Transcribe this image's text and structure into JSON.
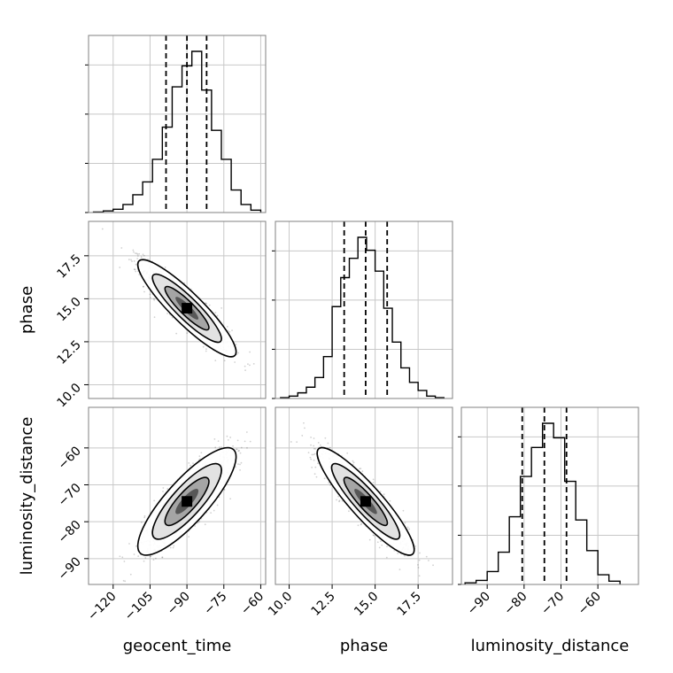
{
  "chart_data": {
    "type": "corner",
    "parameters": [
      "geocent_time",
      "phase",
      "luminosity_distance"
    ],
    "grid": true,
    "ranges": {
      "geocent_time": [
        -130,
        -58
      ],
      "phase": [
        9.2,
        19.5
      ],
      "luminosity_distance": [
        -97,
        -49
      ]
    },
    "ticks": {
      "geocent_time": {
        "values": [
          -120,
          -105,
          -90,
          -75,
          -60
        ],
        "labels": [
          "−120",
          "−105",
          "−90",
          "−75",
          "−60"
        ]
      },
      "phase": {
        "values": [
          10.0,
          12.5,
          15.0,
          17.5
        ],
        "labels": [
          "10.0",
          "12.5",
          "15.0",
          "17.5"
        ]
      },
      "luminosity_distance": {
        "values": [
          -90,
          -80,
          -70,
          -60
        ],
        "labels": [
          "−90",
          "−80",
          "−70",
          "−60"
        ]
      }
    },
    "quantiles": {
      "geocent_time": [
        -98.5,
        -90.0,
        -82.0
      ],
      "phase": [
        13.2,
        14.45,
        15.7
      ],
      "luminosity_distance": [
        -80.5,
        -74.5,
        -68.5
      ]
    },
    "marginals": [
      {
        "parameter": "geocent_time",
        "bin_edges": [
          -128,
          -124,
          -120,
          -116,
          -112,
          -108,
          -104,
          -100,
          -96,
          -92,
          -88,
          -84,
          -80,
          -76,
          -72,
          -68,
          -64,
          -60
        ],
        "counts": [
          0.3,
          1.0,
          2.0,
          5.0,
          11.0,
          19.0,
          33.0,
          53.0,
          78.0,
          91.0,
          100.0,
          76.0,
          51.0,
          33.0,
          14.0,
          5.0,
          1.5
        ]
      },
      {
        "parameter": "phase",
        "bin_edges": [
          9.5,
          10.0,
          10.5,
          11.0,
          11.5,
          12.0,
          12.5,
          13.0,
          13.5,
          14.0,
          14.5,
          15.0,
          15.5,
          16.0,
          16.5,
          17.0,
          17.5,
          18.0,
          18.5,
          19.0
        ],
        "counts": [
          0.5,
          1.5,
          3.5,
          7.0,
          13.0,
          26.0,
          57.0,
          75.0,
          87.0,
          100.0,
          92.0,
          79.0,
          56.0,
          35.0,
          19.0,
          10.0,
          5.0,
          1.5,
          0.5
        ]
      },
      {
        "parameter": "luminosity_distance",
        "bin_edges": [
          -96,
          -93,
          -90,
          -87,
          -84,
          -81,
          -78,
          -75,
          -72,
          -69,
          -66,
          -63,
          -60,
          -57,
          -54
        ],
        "counts": [
          1.0,
          2.5,
          8.0,
          20.0,
          42.0,
          67.0,
          85.0,
          100.0,
          91.0,
          64.0,
          40.0,
          21.0,
          6.0,
          2.0
        ]
      }
    ],
    "joints": [
      {
        "x": "geocent_time",
        "y": "phase",
        "center": [
          -90.0,
          14.45
        ],
        "sd": [
          8.5,
          1.2
        ],
        "correlation": -0.9
      },
      {
        "x": "geocent_time",
        "y": "luminosity_distance",
        "center": [
          -90.0,
          -74.5
        ],
        "sd": [
          8.5,
          6.2
        ],
        "correlation": 0.83
      },
      {
        "x": "phase",
        "y": "luminosity_distance",
        "center": [
          14.45,
          -74.5
        ],
        "sd": [
          1.2,
          6.2
        ],
        "correlation": -0.9
      }
    ]
  }
}
